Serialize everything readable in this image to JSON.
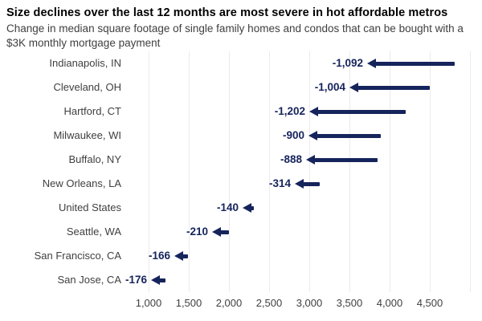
{
  "header": {
    "title": "Size declines over the last 12 months are most severe in hot affordable metros",
    "subtitle": "Change in median square footage of single family homes and condos that can be bought with a $3K monthly mortgage payment"
  },
  "chart_data": {
    "type": "arrow",
    "title": "Size declines over the last 12 months are most severe in hot affordable metros",
    "subtitle": "Change in median square footage of single family homes and condos that can be bought with a $3K monthly mortgage payment",
    "categories": [
      "Indianapolis, IN",
      "Cleveland, OH",
      "Hartford, CT",
      "Milwaukee, WI",
      "Buffalo, NY",
      "New Orleans, LA",
      "United States",
      "Seattle, WA",
      "San Francisco, CA",
      "San Jose, CA"
    ],
    "series": [
      {
        "name": "change_in_sqft",
        "values": [
          -1092,
          -1004,
          -1202,
          -900,
          -888,
          -314,
          -140,
          -210,
          -166,
          -176
        ]
      },
      {
        "name": "arrow_start_sqft_estimated",
        "values": [
          4812,
          4504,
          4202,
          3890,
          3848,
          3134,
          2310,
          2000,
          1486,
          1206
        ]
      },
      {
        "name": "arrow_end_sqft_estimated",
        "values": [
          3720,
          3500,
          3000,
          2990,
          2960,
          2820,
          2170,
          1790,
          1320,
          1030
        ]
      }
    ],
    "value_labels": [
      "-1,092",
      "-1,004",
      "-1,202",
      "-900",
      "-888",
      "-314",
      "-140",
      "-210",
      "-166",
      "-176"
    ],
    "xlabel": "",
    "ylabel": "",
    "xlim": [
      750,
      5050
    ],
    "xticks": [
      1000,
      1500,
      2000,
      2500,
      3000,
      3500,
      4000,
      4500
    ],
    "xtick_labels": [
      "1,000",
      "1,500",
      "2,000",
      "2,500",
      "3,000",
      "3,500",
      "4,000",
      "4,500"
    ],
    "gridlines": [
      1000,
      1500,
      2000,
      2500,
      3000,
      3500,
      4000,
      4500,
      5000
    ],
    "grid": "vertical",
    "legend": "none",
    "colors": {
      "arrow": "#16245c",
      "value_label": "#16245c",
      "category_label": "#3f3f3f",
      "axis_label": "#3f3f3f",
      "gridline": "#ebebeb",
      "title": "#000000",
      "subtitle": "#3f3f3f",
      "background": "#ffffff"
    }
  }
}
